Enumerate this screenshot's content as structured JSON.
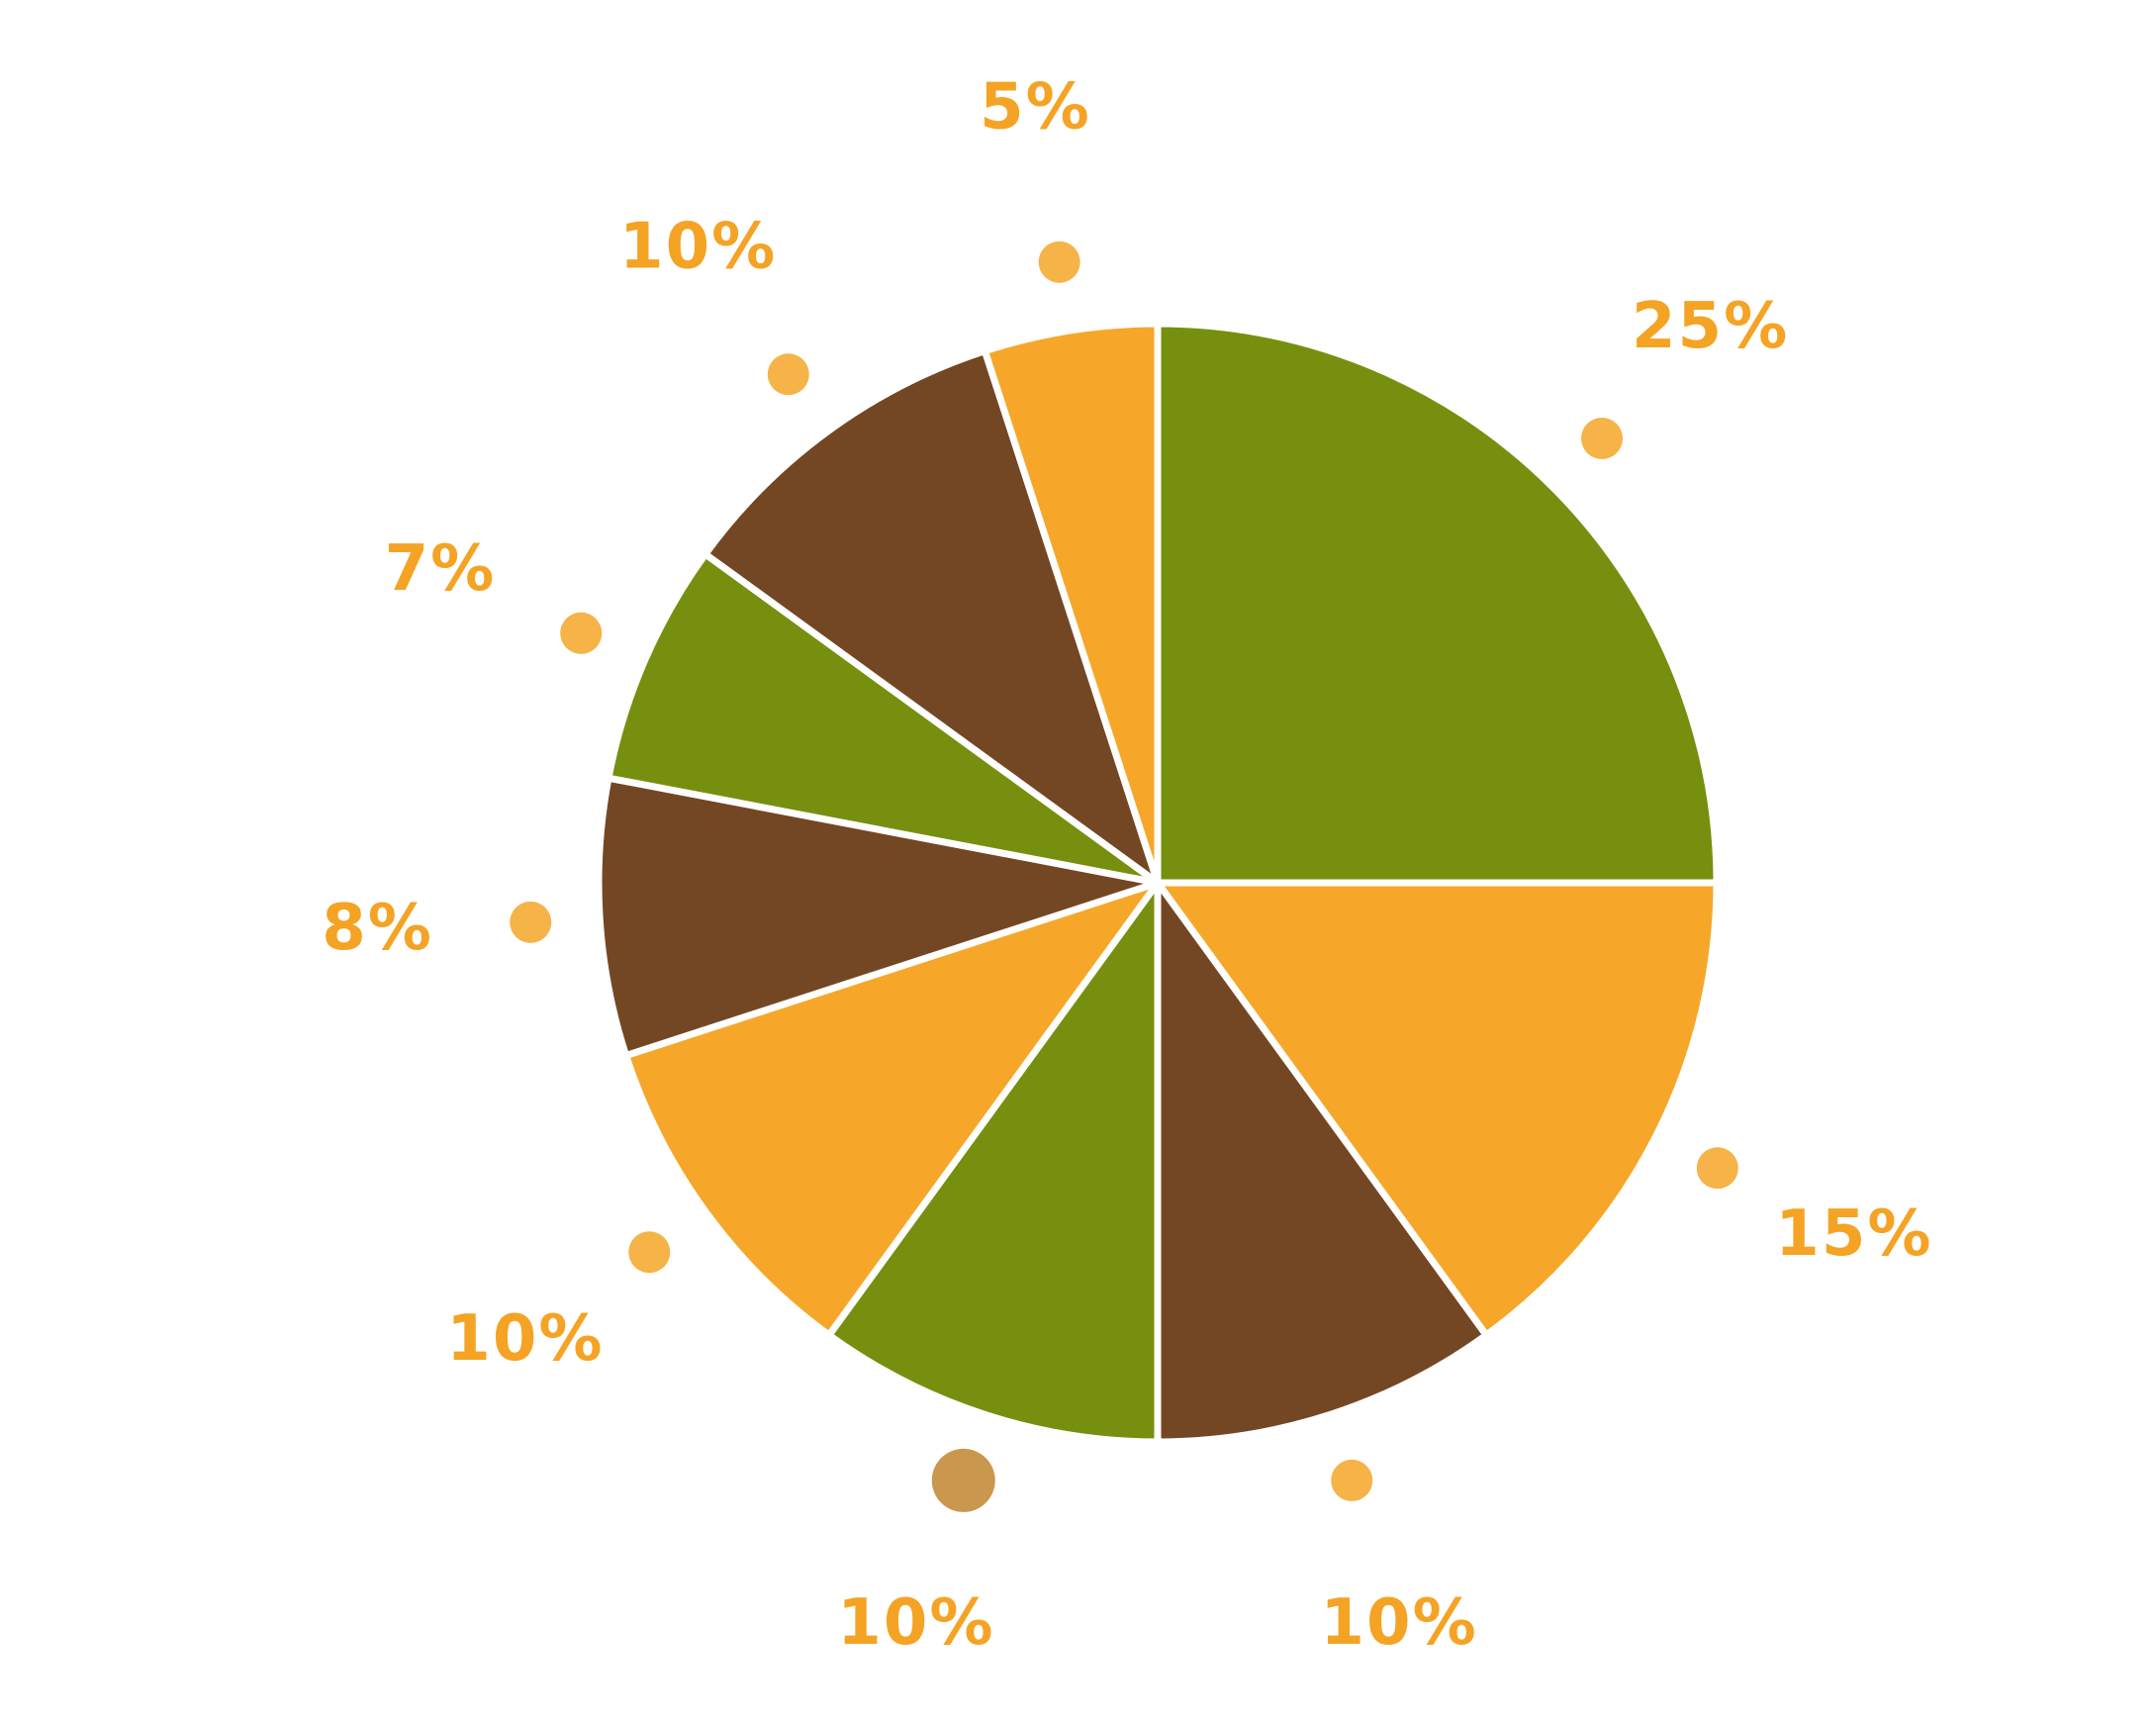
{
  "chart_data": {
    "type": "pie",
    "title": "",
    "slices": [
      {
        "value": 25,
        "label": "25%",
        "color": "#778f0e"
      },
      {
        "value": 15,
        "label": "15%",
        "color": "#f6a72a"
      },
      {
        "value": 10,
        "label": "10%",
        "color": "#734724"
      },
      {
        "value": 10,
        "label": "10%",
        "color": "#778f0e"
      },
      {
        "value": 10,
        "label": "10%",
        "color": "#f6a72a"
      },
      {
        "value": 8,
        "label": "8%",
        "color": "#734724"
      },
      {
        "value": 7,
        "label": "7%",
        "color": "#778f0e"
      },
      {
        "value": 10,
        "label": "10%",
        "color": "#734724"
      },
      {
        "value": 5,
        "label": "5%",
        "color": "#f6a72a"
      }
    ],
    "highlighted_index": 3,
    "start": "top",
    "direction": "clockwise",
    "label_color": "#f5a324",
    "marker_color": "#f6b347",
    "highlight_marker_color": "#c9974d"
  }
}
